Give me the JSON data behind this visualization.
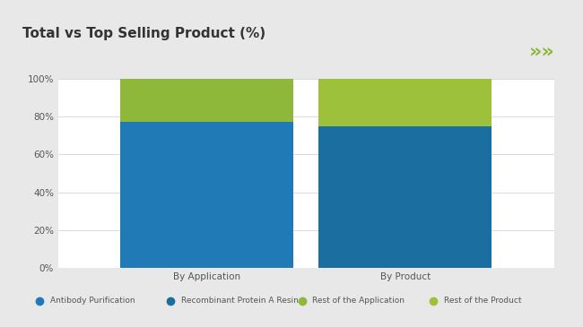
{
  "title": "Total vs Top Selling Product (%)",
  "categories": [
    "By Application",
    "By Product"
  ],
  "series": [
    {
      "label": "Antibody Purification",
      "values": [
        77,
        0
      ],
      "color": "#1f7ab5"
    },
    {
      "label": "Recombinant Protein A Resin",
      "values": [
        0,
        75
      ],
      "color": "#1a6fa0"
    },
    {
      "label": "Rest of the Application",
      "values": [
        23,
        0
      ],
      "color": "#8db83a"
    },
    {
      "label": "Rest of the Product",
      "values": [
        0,
        25
      ],
      "color": "#9dc13a"
    }
  ],
  "ylim": [
    0,
    100
  ],
  "yticks": [
    0,
    20,
    40,
    60,
    80,
    100
  ],
  "ytick_labels": [
    "0%",
    "20%",
    "40%",
    "60%",
    "80%",
    "100%"
  ],
  "background_color": "#ffffff",
  "outer_background": "#e8e8e8",
  "title_color": "#333333",
  "title_fontsize": 11,
  "bar_width": 0.35,
  "accent_line_color": "#8db83a",
  "arrow_color": "#8db83a",
  "legend_dot_colors": [
    "#1f7ab5",
    "#1a6fa0",
    "#8db83a",
    "#9dc13a"
  ],
  "legend_labels": [
    "Antibody Purification",
    "Recombinant Protein A Resin",
    "Rest of the Application",
    "Rest of the Product"
  ]
}
